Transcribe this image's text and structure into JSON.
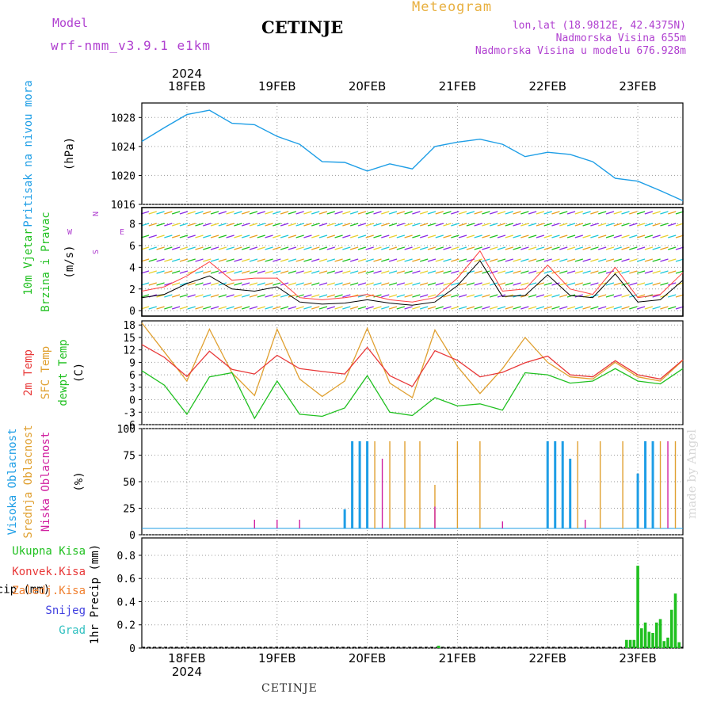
{
  "header": {
    "model_label": "Model",
    "model_name": "wrf-nmm_v3.9.1 e1km",
    "station": "CETINJE",
    "title": "Meteogram",
    "lonlat": "lon,lat (18.9812E, 42.4375N)",
    "elevation": "Nadmorska Visina 655m",
    "model_elevation": "Nadmorska Visina u modelu 676.928m"
  },
  "footer": {
    "station": "CETINJE",
    "credit": "made by Angel"
  },
  "time_axis": {
    "year": "2024",
    "days": [
      "18FEB",
      "19FEB",
      "20FEB",
      "21FEB",
      "22FEB",
      "23FEB"
    ],
    "start": "2024-02-17 12:00",
    "end": "2024-02-23 12:00"
  },
  "colors": {
    "pressure": "#1e9ee6",
    "temp2m": "#e83838",
    "sfc_temp": "#e0a030",
    "dewpt": "#20c020",
    "high_cloud": "#1e9ee6",
    "mid_cloud": "#e0a030",
    "low_cloud": "#d020a0",
    "precip": "#20c020",
    "wind_speed": "#000000",
    "gust": "#ff4040"
  },
  "chart_data": [
    {
      "type": "line",
      "ylabels": [
        "Pritisak na nivou mora",
        "(hPa)"
      ],
      "ylim": [
        1016,
        1030
      ],
      "yticks": [
        1016,
        1020,
        1024,
        1028
      ],
      "series": [
        {
          "name": "Pritisak na nivou mora",
          "x": [
            "2024-02-17 12:00",
            "2024-02-17 18:00",
            "2024-02-18 00:00",
            "2024-02-18 06:00",
            "2024-02-18 12:00",
            "2024-02-18 18:00",
            "2024-02-19 00:00",
            "2024-02-19 06:00",
            "2024-02-19 12:00",
            "2024-02-19 18:00",
            "2024-02-20 00:00",
            "2024-02-20 06:00",
            "2024-02-20 12:00",
            "2024-02-20 18:00",
            "2024-02-21 00:00",
            "2024-02-21 06:00",
            "2024-02-21 12:00",
            "2024-02-21 18:00",
            "2024-02-22 00:00",
            "2024-02-22 06:00",
            "2024-02-22 12:00",
            "2024-02-22 18:00",
            "2024-02-23 00:00",
            "2024-02-23 06:00",
            "2024-02-23 12:00"
          ],
          "values": [
            1024.7,
            1026.6,
            1028.4,
            1029.0,
            1027.2,
            1027.0,
            1025.4,
            1024.3,
            1021.9,
            1021.8,
            1020.6,
            1021.6,
            1020.9,
            1024.0,
            1024.6,
            1025.0,
            1024.3,
            1022.6,
            1023.2,
            1022.9,
            1021.9,
            1019.6,
            1019.2,
            1017.9,
            1016.5
          ]
        }
      ]
    },
    {
      "type": "line",
      "ylabels": [
        "10m Vjetar",
        "Brzina i Pravac",
        "(m/s)"
      ],
      "ylim": [
        -0.5,
        9.5
      ],
      "yticks": [
        0,
        2,
        4,
        6,
        8
      ],
      "compass": {
        "n": "N",
        "e": "E",
        "s": "S",
        "w": "W"
      },
      "series": [
        {
          "name": "wind_speed",
          "values": [
            1.2,
            1.5,
            2.5,
            3.2,
            2.0,
            1.8,
            2.2,
            0.8,
            0.6,
            0.7,
            1.0,
            0.7,
            0.5,
            0.8,
            2.3,
            4.6,
            1.3,
            1.4,
            3.3,
            1.4,
            1.2,
            3.4,
            0.8,
            1.0,
            2.8
          ]
        },
        {
          "name": "gust",
          "values": [
            1.8,
            2.2,
            3.2,
            4.5,
            2.8,
            3.0,
            3.0,
            1.2,
            1.0,
            1.2,
            1.5,
            1.0,
            0.8,
            1.2,
            3.0,
            5.5,
            1.8,
            2.0,
            4.2,
            2.0,
            1.5,
            4.0,
            1.2,
            1.5,
            3.5
          ]
        }
      ]
    },
    {
      "type": "line",
      "ylabels": [
        "2m Temp",
        "SFC Temp",
        "dewpt Temp",
        "(C)"
      ],
      "ylim": [
        -6,
        19
      ],
      "yticks": [
        -6,
        -3,
        0,
        3,
        6,
        9,
        12,
        15,
        18
      ],
      "series": [
        {
          "name": "2m Temp",
          "values": [
            13.3,
            10.2,
            5.6,
            11.7,
            7.3,
            6.2,
            10.7,
            7.5,
            6.8,
            6.2,
            12.6,
            5.8,
            3.2,
            11.8,
            9.5,
            5.5,
            6.6,
            8.9,
            10.5,
            6.0,
            5.5,
            9.4,
            6.0,
            5.0,
            9.6
          ]
        },
        {
          "name": "SFC Temp",
          "values": [
            18.5,
            11.5,
            4.5,
            17.0,
            6.5,
            1.0,
            17.0,
            5.0,
            0.8,
            4.5,
            17.2,
            4.0,
            0.5,
            16.8,
            8.0,
            1.5,
            7.5,
            15.0,
            9.0,
            5.5,
            5.0,
            9.0,
            5.5,
            4.5,
            9.5
          ]
        },
        {
          "name": "dewpt Temp",
          "values": [
            7.0,
            3.5,
            -3.5,
            5.5,
            6.5,
            -4.5,
            4.5,
            -3.5,
            -4.0,
            -2.0,
            5.8,
            -3.0,
            -3.8,
            0.5,
            -1.5,
            -1.0,
            -2.5,
            6.5,
            6.0,
            4.0,
            4.5,
            7.5,
            4.5,
            3.8,
            7.5
          ]
        }
      ]
    },
    {
      "type": "bar",
      "ylabels": [
        "Visoka Oblacnost",
        "Srednja Oblacnost",
        "Niska Oblacnost",
        "(%)"
      ],
      "ylim": [
        0,
        100
      ],
      "yticks": [
        0,
        25,
        50,
        75,
        100
      ],
      "series": [
        {
          "name": "Visoka Oblacnost",
          "x": [
            "2024-02-19 18:00",
            "2024-02-19 20:00",
            "2024-02-19 22:00",
            "2024-02-20 00:00",
            "2024-02-22 00:00",
            "2024-02-22 02:00",
            "2024-02-22 04:00",
            "2024-02-22 06:00",
            "2024-02-23 00:00",
            "2024-02-23 02:00",
            "2024-02-23 04:00"
          ],
          "values": [
            22,
            100,
            100,
            100,
            100,
            100,
            100,
            80,
            63,
            100,
            100
          ]
        },
        {
          "name": "Srednja Oblacnost",
          "x": [
            "2024-02-20 02:00",
            "2024-02-20 06:00",
            "2024-02-20 10:00",
            "2024-02-20 14:00",
            "2024-02-20 18:00",
            "2024-02-21 00:00",
            "2024-02-21 06:00",
            "2024-02-22 08:00",
            "2024-02-22 14:00",
            "2024-02-22 20:00",
            "2024-02-23 06:00",
            "2024-02-23 10:00"
          ],
          "values": [
            100,
            100,
            100,
            100,
            50,
            100,
            100,
            100,
            100,
            100,
            100,
            100
          ]
        },
        {
          "name": "Niska Oblacnost",
          "x": [
            "2024-02-18 18:00",
            "2024-02-19 00:00",
            "2024-02-19 06:00",
            "2024-02-20 04:00",
            "2024-02-20 18:00",
            "2024-02-21 12:00",
            "2024-02-22 10:00",
            "2024-02-23 08:00"
          ],
          "values": [
            10,
            10,
            10,
            80,
            25,
            8,
            10,
            100
          ]
        }
      ]
    },
    {
      "type": "bar",
      "ylabels": [
        "Ukupna Kisa",
        "Konvek.Kisa",
        "Zaledj.Kisa",
        "Snijeg",
        "Grad",
        "1hr Precip (mm)"
      ],
      "ylim": [
        0,
        0.95
      ],
      "yticks": [
        0,
        0.2,
        0.4,
        0.6,
        0.8
      ],
      "series": [
        {
          "name": "Ukupna Kisa",
          "x": [
            "2024-02-20 19:00",
            "2024-02-22 21:00",
            "2024-02-22 22:00",
            "2024-02-22 23:00",
            "2024-02-23 00:00",
            "2024-02-23 01:00",
            "2024-02-23 02:00",
            "2024-02-23 03:00",
            "2024-02-23 04:00",
            "2024-02-23 05:00",
            "2024-02-23 06:00",
            "2024-02-23 07:00",
            "2024-02-23 08:00",
            "2024-02-23 09:00",
            "2024-02-23 10:00",
            "2024-02-23 11:00"
          ],
          "values": [
            0.02,
            0.07,
            0.07,
            0.07,
            0.71,
            0.17,
            0.22,
            0.14,
            0.13,
            0.22,
            0.25,
            0.06,
            0.09,
            0.33,
            0.47,
            0.05
          ]
        }
      ]
    }
  ]
}
